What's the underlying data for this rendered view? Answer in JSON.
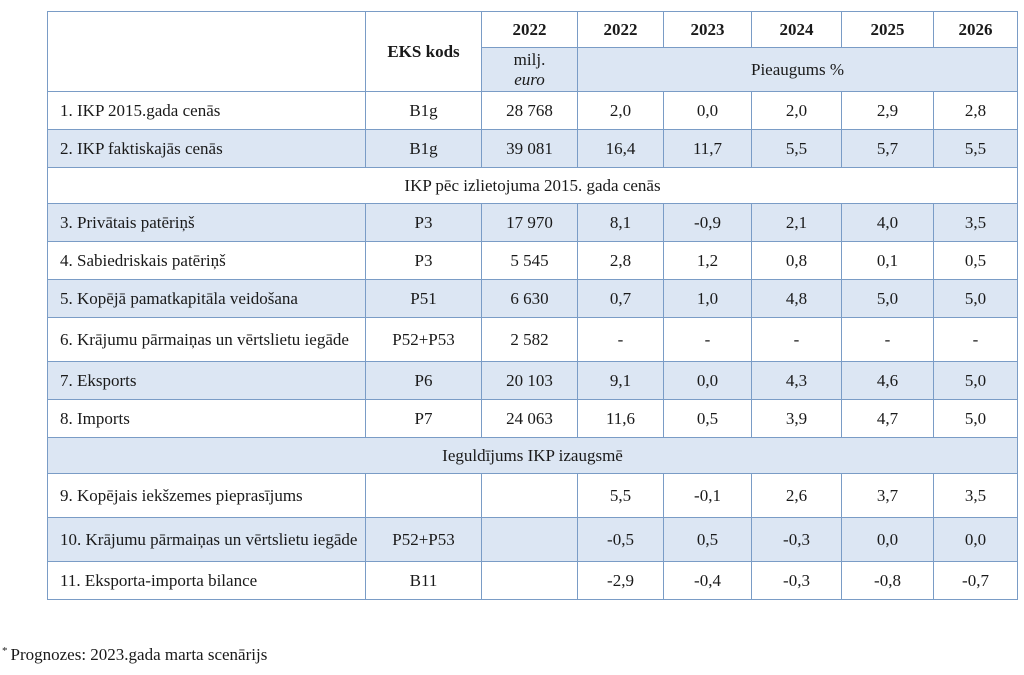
{
  "header": {
    "eks_kods": "EKS kods",
    "year_base": "2022",
    "unit_line1": "milj.",
    "unit_line2": "euro",
    "growth_label": "Pieaugums %",
    "years": [
      "2022",
      "2023",
      "2024",
      "2025",
      "2026"
    ]
  },
  "rows": [
    {
      "label": "1. IKP 2015.gada cenās",
      "code": "B1g",
      "base": "28 768",
      "v": [
        "2,0",
        "0,0",
        "2,0",
        "2,9",
        "2,8"
      ]
    },
    {
      "label": "2. IKP faktiskajās cenās",
      "code": "B1g",
      "base": "39 081",
      "v": [
        "16,4",
        "11,7",
        "5,5",
        "5,7",
        "5,5"
      ]
    },
    {
      "label": "3. Privātais patēriņš",
      "code": "P3",
      "base": "17 970",
      "v": [
        "8,1",
        "-0,9",
        "2,1",
        "4,0",
        "3,5"
      ]
    },
    {
      "label": "4. Sabiedriskais patēriņš",
      "code": "P3",
      "base": "5 545",
      "v": [
        "2,8",
        "1,2",
        "0,8",
        "0,1",
        "0,5"
      ]
    },
    {
      "label": "5. Kopējā pamatkapitāla veidošana",
      "code": "P51",
      "base": "6 630",
      "v": [
        "0,7",
        "1,0",
        "4,8",
        "5,0",
        "5,0"
      ]
    },
    {
      "label": "6. Krājumu pārmaiņas un vērtslietu iegāde",
      "code": "P52+P53",
      "base": "2 582",
      "v": [
        "-",
        "-",
        "-",
        "-",
        "-"
      ]
    },
    {
      "label": "7. Eksports",
      "code": "P6",
      "base": "20 103",
      "v": [
        "9,1",
        "0,0",
        "4,3",
        "4,6",
        "5,0"
      ]
    },
    {
      "label": "8. Imports",
      "code": "P7",
      "base": "24 063",
      "v": [
        "11,6",
        "0,5",
        "3,9",
        "4,7",
        "5,0"
      ]
    },
    {
      "label": "9. Kopējais iekšzemes pieprasījums",
      "code": "",
      "base": "",
      "v": [
        "5,5",
        "-0,1",
        "2,6",
        "3,7",
        "3,5"
      ]
    },
    {
      "label": "10. Krājumu pārmaiņas un vērtslietu iegāde",
      "code": "P52+P53",
      "base": "",
      "v": [
        "-0,5",
        "0,5",
        "-0,3",
        "0,0",
        "0,0"
      ]
    },
    {
      "label": "11. Eksporta-importa bilance",
      "code": "B11",
      "base": "",
      "v": [
        "-2,9",
        "-0,4",
        "-0,3",
        "-0,8",
        "-0,7"
      ]
    }
  ],
  "sections": {
    "usage": "IKP pēc izlietojuma 2015. gada cenās",
    "contribution": "Ieguldījums IKP izaugsmē"
  },
  "footnote": {
    "marker": "*",
    "text": "Prognozes: 2023.gada marta scenārijs"
  }
}
